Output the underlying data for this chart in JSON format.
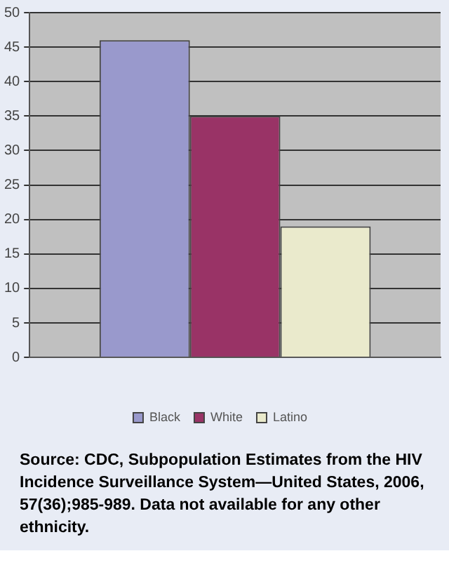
{
  "chart_data": {
    "type": "bar",
    "categories": [
      null
    ],
    "series": [
      {
        "name": "Black",
        "color": "#9999cc",
        "values": [
          46
        ]
      },
      {
        "name": "White",
        "color": "#993366",
        "values": [
          35
        ]
      },
      {
        "name": "Latino",
        "color": "#eaeacc",
        "values": [
          19
        ]
      }
    ],
    "ylim": [
      0,
      50
    ],
    "yticks": [
      0,
      5,
      10,
      15,
      20,
      25,
      30,
      35,
      40,
      45,
      50
    ],
    "grid": "y",
    "legend": "bottom",
    "annotations": [
      "Source: CDC, Subpopulation Estimates from the HIV Incidence Surveillance System—United States, 2006, 57(36);985-989. Data not available for any other ethnicity."
    ]
  }
}
